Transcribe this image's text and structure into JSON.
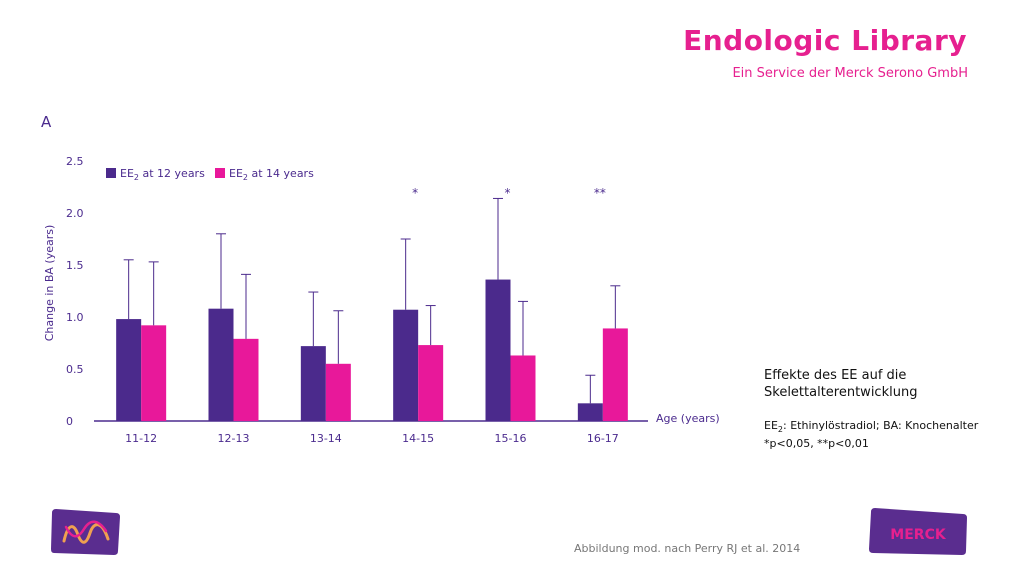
{
  "brand": {
    "title": "Endologic Library",
    "subtitle": "Ein Service der Merck Serono GmbH"
  },
  "panel_label": "A",
  "caption": {
    "line1": "Effekte des EE auf die",
    "line2": "Skelettalterentwicklung"
  },
  "note": {
    "ee_prefix": "EE",
    "ee_sub": "2",
    "abbrev_rest": ": Ethinylöstradiol; BA: Knochenalter",
    "significance": "*p<0,05, **p<0,01"
  },
  "source": "Abbildung mod. nach Perry RJ et al. 2014",
  "logos": {
    "left": "merck-m-logo",
    "right": "merck-wordmark-logo",
    "right_text": "MERCK"
  },
  "colors": {
    "series1": "#4b2a8c",
    "series2": "#e8189a",
    "brand": "#e6208f",
    "axis": "#4b2b8e"
  },
  "chart_data": {
    "type": "bar",
    "ylabel": "Change in BA (years)",
    "xlabel": "Age (years)",
    "ylim": [
      0,
      2.5
    ],
    "yticks": [
      "0",
      "0.5",
      "1.0",
      "1.5",
      "2.0",
      "2.5"
    ],
    "ytick_values": [
      0,
      0.5,
      1.0,
      1.5,
      2.0,
      2.5
    ],
    "categories": [
      "11-12",
      "12-13",
      "13-14",
      "14-15",
      "15-16",
      "16-17"
    ],
    "legend_position": "top-left",
    "series": [
      {
        "name_main": "EE",
        "name_sub": "2",
        "name_rest": " at 12 years",
        "values": [
          0.98,
          1.08,
          0.72,
          1.07,
          1.36,
          0.17
        ],
        "error_upper": [
          1.55,
          1.8,
          1.24,
          1.75,
          2.14,
          0.44
        ]
      },
      {
        "name_main": "EE",
        "name_sub": "2",
        "name_rest": " at 14 years",
        "values": [
          0.92,
          0.79,
          0.55,
          0.73,
          0.63,
          0.89
        ],
        "error_upper": [
          1.53,
          1.41,
          1.06,
          1.11,
          1.15,
          1.3
        ]
      }
    ],
    "annotations": [
      "",
      "",
      "",
      "*",
      "*",
      "**"
    ]
  }
}
